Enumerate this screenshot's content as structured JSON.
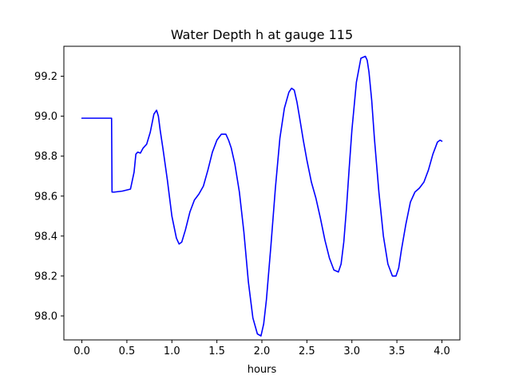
{
  "chart_data": {
    "type": "line",
    "title": "Water Depth h at gauge 115",
    "xlabel": "hours",
    "ylabel": "",
    "xlim": [
      -0.2,
      4.2
    ],
    "ylim": [
      97.88,
      99.35
    ],
    "xticks": [
      0.0,
      0.5,
      1.0,
      1.5,
      2.0,
      2.5,
      3.0,
      3.5,
      4.0
    ],
    "xtick_labels": [
      "0.0",
      "0.5",
      "1.0",
      "1.5",
      "2.0",
      "2.5",
      "3.0",
      "3.5",
      "4.0"
    ],
    "yticks": [
      98.0,
      98.2,
      98.4,
      98.6,
      98.8,
      99.0,
      99.2
    ],
    "ytick_labels": [
      "98.0",
      "98.2",
      "98.4",
      "98.6",
      "98.8",
      "99.0",
      "99.2"
    ],
    "grid": false,
    "series": [
      {
        "color": "#0000ff",
        "x": [
          0.0,
          0.33,
          0.335,
          0.36,
          0.45,
          0.54,
          0.58,
          0.6,
          0.62,
          0.65,
          0.68,
          0.72,
          0.76,
          0.8,
          0.83,
          0.85,
          0.87,
          0.9,
          0.95,
          1.0,
          1.05,
          1.08,
          1.11,
          1.15,
          1.2,
          1.25,
          1.3,
          1.35,
          1.4,
          1.45,
          1.5,
          1.55,
          1.6,
          1.63,
          1.66,
          1.7,
          1.75,
          1.8,
          1.85,
          1.9,
          1.95,
          1.99,
          2.02,
          2.05,
          2.1,
          2.15,
          2.2,
          2.25,
          2.3,
          2.33,
          2.36,
          2.39,
          2.42,
          2.46,
          2.5,
          2.55,
          2.6,
          2.65,
          2.7,
          2.75,
          2.8,
          2.85,
          2.88,
          2.91,
          2.94,
          2.97,
          3.0,
          3.05,
          3.1,
          3.15,
          3.17,
          3.19,
          3.22,
          3.25,
          3.3,
          3.35,
          3.4,
          3.45,
          3.49,
          3.52,
          3.55,
          3.6,
          3.65,
          3.7,
          3.75,
          3.8,
          3.85,
          3.9,
          3.95,
          3.98,
          4.0
        ],
        "y": [
          98.99,
          98.99,
          98.62,
          98.62,
          98.625,
          98.635,
          98.72,
          98.81,
          98.82,
          98.815,
          98.84,
          98.86,
          98.92,
          99.01,
          99.03,
          99.0,
          98.93,
          98.84,
          98.68,
          98.5,
          98.39,
          98.36,
          98.37,
          98.43,
          98.52,
          98.58,
          98.61,
          98.65,
          98.73,
          98.82,
          98.88,
          98.91,
          98.91,
          98.88,
          98.84,
          98.76,
          98.62,
          98.42,
          98.17,
          97.99,
          97.91,
          97.9,
          97.96,
          98.08,
          98.35,
          98.64,
          98.89,
          99.04,
          99.12,
          99.14,
          99.13,
          99.07,
          98.99,
          98.88,
          98.78,
          98.67,
          98.59,
          98.49,
          98.38,
          98.29,
          98.23,
          98.22,
          98.26,
          98.37,
          98.54,
          98.74,
          98.93,
          99.17,
          99.29,
          99.3,
          99.28,
          99.22,
          99.08,
          98.89,
          98.62,
          98.4,
          98.26,
          98.2,
          98.2,
          98.24,
          98.33,
          98.46,
          98.57,
          98.62,
          98.64,
          98.67,
          98.73,
          98.81,
          98.87,
          98.88,
          98.875
        ]
      }
    ]
  }
}
